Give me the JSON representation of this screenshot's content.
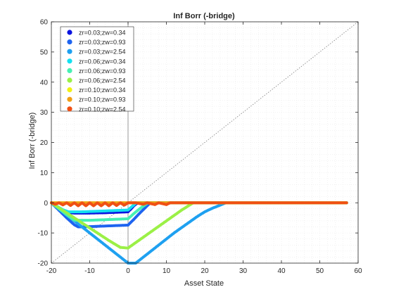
{
  "chart_data": {
    "type": "scatter",
    "title": "Inf Borr (-bridge)",
    "xlabel": "Asset State",
    "ylabel": "Inf Borr (-bridge)",
    "xlim": [
      -20,
      60
    ],
    "ylim": [
      -20,
      60
    ],
    "xticks": [
      -20,
      -10,
      0,
      10,
      20,
      30,
      40,
      50,
      60
    ],
    "yticks": [
      -20,
      -10,
      0,
      10,
      20,
      30,
      40,
      50,
      60
    ],
    "grid": "minor dotted",
    "legend_position": "top-left",
    "reference_lines": [
      {
        "kind": "45-degree",
        "style": "dotted",
        "color": "#7f7f7f"
      },
      {
        "kind": "vertical x=0",
        "color": "#7f7f7f"
      }
    ],
    "series": [
      {
        "name": "zr=0.03;zw=0.34",
        "color": "#0a14e0",
        "marker": "dot",
        "points": [
          [
            -20,
            0
          ],
          [
            -19.5,
            -0.5
          ],
          [
            -18.5,
            -1.5
          ],
          [
            -17,
            -2.5
          ],
          [
            -16,
            -3.2
          ],
          [
            -14,
            -3.4
          ],
          [
            -10,
            -3.4
          ],
          [
            -6,
            -3.3
          ],
          [
            -2,
            -3.1
          ],
          [
            0,
            -3
          ],
          [
            0.8,
            -2
          ],
          [
            1.5,
            -1
          ],
          [
            2.2,
            -0.3
          ],
          [
            2.8,
            0
          ],
          [
            10,
            0
          ],
          [
            57,
            0
          ]
        ]
      },
      {
        "name": "zr=0.03;zw=0.93",
        "color": "#1e64f0",
        "marker": "dot",
        "points": [
          [
            -20,
            0
          ],
          [
            -18,
            -2.5
          ],
          [
            -16,
            -5
          ],
          [
            -14,
            -7.3
          ],
          [
            -13,
            -8
          ],
          [
            -10,
            -7.9
          ],
          [
            -6,
            -7.7
          ],
          [
            -2,
            -7.5
          ],
          [
            0,
            -7.4
          ],
          [
            1.5,
            -5.5
          ],
          [
            3,
            -3.5
          ],
          [
            4.5,
            -1.6
          ],
          [
            5.8,
            0
          ],
          [
            10,
            0
          ],
          [
            57,
            0
          ]
        ]
      },
      {
        "name": "zr=0.03;zw=2.54",
        "color": "#1ea0f0",
        "marker": "dot",
        "points": [
          [
            -20,
            0
          ],
          [
            -16,
            -4
          ],
          [
            -12,
            -8
          ],
          [
            -8,
            -12
          ],
          [
            -4,
            -16
          ],
          [
            0,
            -20
          ],
          [
            2,
            -20
          ],
          [
            4,
            -18
          ],
          [
            6,
            -16
          ],
          [
            8,
            -14
          ],
          [
            10,
            -12
          ],
          [
            12,
            -10
          ],
          [
            14,
            -8.2
          ],
          [
            16,
            -6.4
          ],
          [
            18,
            -4.6
          ],
          [
            20,
            -3
          ],
          [
            22,
            -1.8
          ],
          [
            24,
            -0.8
          ],
          [
            25.5,
            0
          ],
          [
            30,
            0
          ],
          [
            57,
            0
          ]
        ]
      },
      {
        "name": "zr=0.06;zw=0.34",
        "color": "#14e0f0",
        "marker": "dot",
        "points": [
          [
            -20,
            0
          ],
          [
            -18.5,
            -1.2
          ],
          [
            -17,
            -2.3
          ],
          [
            -15.5,
            -3
          ],
          [
            -12,
            -3
          ],
          [
            -8,
            -2.8
          ],
          [
            -4,
            -2.6
          ],
          [
            0,
            -2.4
          ],
          [
            0.8,
            -1.5
          ],
          [
            1.6,
            -0.6
          ],
          [
            2.2,
            0
          ],
          [
            10,
            0
          ],
          [
            57,
            0
          ]
        ]
      },
      {
        "name": "zr=0.06;zw=0.93",
        "color": "#46f0b4",
        "marker": "dot",
        "points": [
          [
            -20,
            0
          ],
          [
            -18,
            -2
          ],
          [
            -16,
            -4
          ],
          [
            -14,
            -5.8
          ],
          [
            -10,
            -5.8
          ],
          [
            -6,
            -5.6
          ],
          [
            -2,
            -5.4
          ],
          [
            0,
            -5.3
          ],
          [
            1.5,
            -3.6
          ],
          [
            3,
            -2
          ],
          [
            4.5,
            -0.6
          ],
          [
            5.2,
            0
          ],
          [
            10,
            0
          ],
          [
            57,
            0
          ]
        ]
      },
      {
        "name": "zr=0.06;zw=2.54",
        "color": "#9bf046",
        "marker": "dot",
        "points": [
          [
            -20,
            0
          ],
          [
            -17,
            -2.5
          ],
          [
            -14,
            -5
          ],
          [
            -11,
            -7.5
          ],
          [
            -8,
            -10
          ],
          [
            -5,
            -12.5
          ],
          [
            -2,
            -14.8
          ],
          [
            0,
            -15
          ],
          [
            2,
            -13.2
          ],
          [
            4,
            -11.4
          ],
          [
            6,
            -9.6
          ],
          [
            8,
            -7.8
          ],
          [
            10,
            -6
          ],
          [
            12,
            -4.2
          ],
          [
            14,
            -2.4
          ],
          [
            16,
            -0.8
          ],
          [
            17,
            0
          ],
          [
            20,
            0
          ],
          [
            57,
            0
          ]
        ]
      },
      {
        "name": "zr=0.10;zw=0.34",
        "color": "#f0f014",
        "marker": "dot",
        "points": [
          [
            -20,
            0
          ],
          [
            -15,
            0
          ],
          [
            -10,
            0
          ],
          [
            -5,
            0
          ],
          [
            0,
            0
          ],
          [
            10,
            0
          ],
          [
            57,
            0
          ]
        ]
      },
      {
        "name": "zr=0.10;zw=0.93",
        "color": "#f0a014",
        "marker": "dot",
        "points": [
          [
            -20,
            0
          ],
          [
            -15,
            0
          ],
          [
            -10,
            0
          ],
          [
            -5,
            0
          ],
          [
            0,
            0
          ],
          [
            10,
            0
          ],
          [
            57,
            0
          ]
        ]
      },
      {
        "name": "zr=0.10;zw=2.54",
        "color": "#f05014",
        "marker": "dot",
        "points": [
          [
            -20,
            0
          ],
          [
            -19,
            -0.5
          ],
          [
            -18,
            0
          ],
          [
            -17,
            -0.7
          ],
          [
            -16,
            0
          ],
          [
            -15,
            -0.9
          ],
          [
            -14,
            0
          ],
          [
            -13,
            -1
          ],
          [
            -12,
            0
          ],
          [
            -11,
            -1
          ],
          [
            -10,
            0
          ],
          [
            -9,
            -1
          ],
          [
            -8,
            0
          ],
          [
            -7,
            -1
          ],
          [
            -6,
            0
          ],
          [
            -5,
            -1
          ],
          [
            -4,
            0
          ],
          [
            -3,
            -0.9
          ],
          [
            -2,
            0
          ],
          [
            -1,
            -0.8
          ],
          [
            0,
            0
          ],
          [
            2,
            0
          ],
          [
            4,
            -0.5
          ],
          [
            5,
            0
          ],
          [
            7,
            -0.6
          ],
          [
            8,
            0
          ],
          [
            10,
            -0.6
          ],
          [
            11,
            0
          ],
          [
            15,
            0
          ],
          [
            20,
            0
          ],
          [
            30,
            0
          ],
          [
            40,
            0
          ],
          [
            50,
            0
          ],
          [
            57,
            0
          ]
        ]
      }
    ]
  }
}
